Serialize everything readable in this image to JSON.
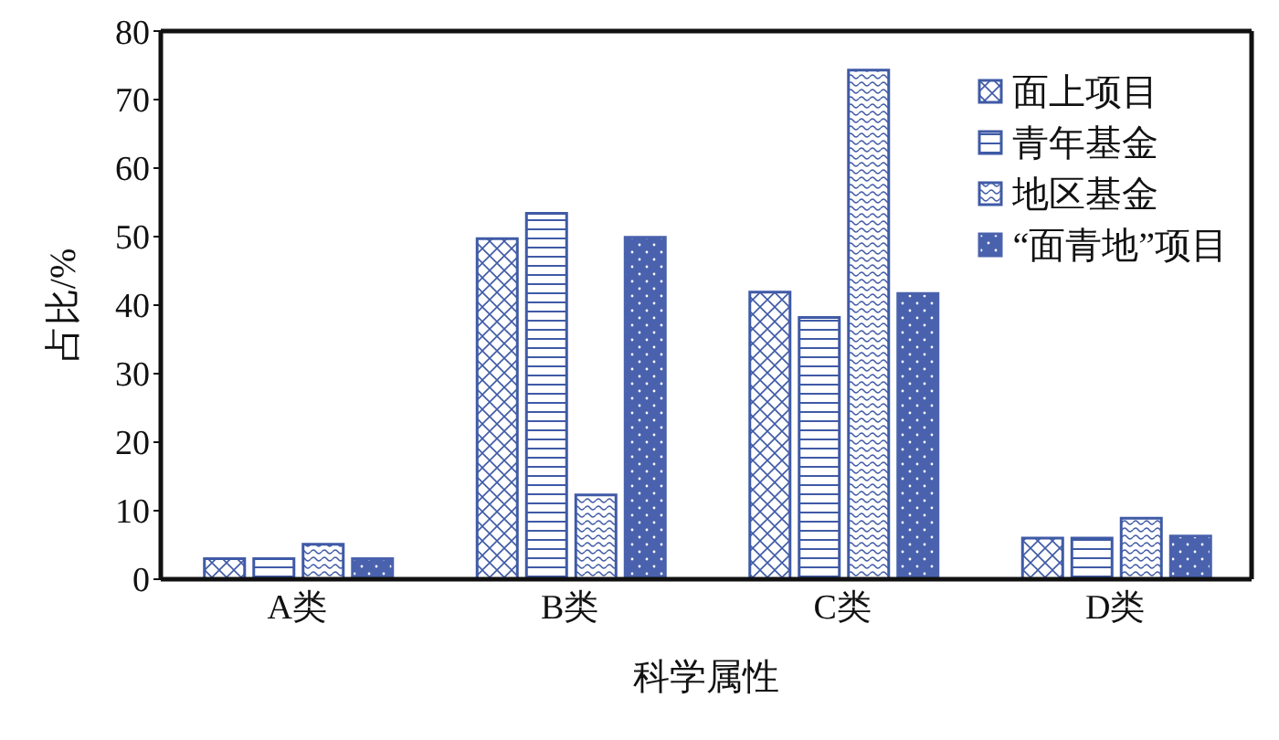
{
  "chart_data": {
    "type": "bar",
    "xlabel": "科学属性",
    "ylabel": "占比/%",
    "categories": [
      "A类",
      "B类",
      "C类",
      "D类"
    ],
    "series": [
      {
        "name": "面上项目",
        "color": "#3f5aa6",
        "values": [
          3.0,
          49.7,
          41.9,
          6.0
        ]
      },
      {
        "name": "青年基金",
        "color": "#3f5aa6",
        "values": [
          3.0,
          53.4,
          38.2,
          6.0
        ]
      },
      {
        "name": "地区基金",
        "color": "#3f5aa6",
        "values": [
          5.1,
          12.3,
          74.3,
          8.9
        ]
      },
      {
        "name": "“面青地”项目",
        "color": "#4a62ad",
        "values": [
          3.0,
          49.9,
          41.7,
          6.3
        ]
      }
    ],
    "ylim": [
      0,
      80
    ],
    "yticks": [
      0,
      10,
      20,
      30,
      40,
      50,
      60,
      70,
      80
    ],
    "legend": "top right"
  }
}
